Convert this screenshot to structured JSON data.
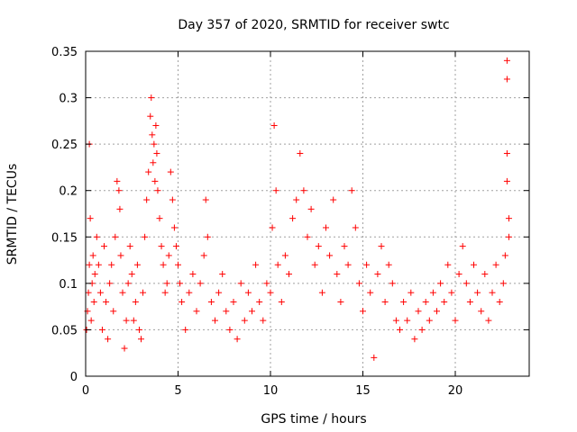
{
  "chart_data": {
    "type": "scatter",
    "title": "Day 357 of 2020, SRMTID for receiver swtc",
    "xlabel": "GPS time / hours",
    "ylabel": "SRMTID / TECUs",
    "xlim": [
      0,
      24
    ],
    "ylim": [
      0,
      0.35
    ],
    "grid": true,
    "marker": "+",
    "x_ticks": [
      0,
      5,
      10,
      15,
      20
    ],
    "x_tick_labels": [
      "0",
      "5",
      "10",
      "15",
      "20"
    ],
    "y_ticks": [
      0,
      0.05,
      0.1,
      0.15,
      0.2,
      0.25,
      0.3,
      0.35
    ],
    "y_tick_labels": [
      "0",
      "0.05",
      "0.1",
      "0.15",
      "0.2",
      "0.25",
      "0.3",
      "0.35"
    ],
    "series": [
      {
        "name": "SRMTID",
        "color": "#ff0000",
        "points": [
          [
            0.05,
            0.05
          ],
          [
            0.1,
            0.07
          ],
          [
            0.15,
            0.09
          ],
          [
            0.2,
            0.12
          ],
          [
            0.2,
            0.25
          ],
          [
            0.25,
            0.17
          ],
          [
            0.3,
            0.06
          ],
          [
            0.35,
            0.1
          ],
          [
            0.4,
            0.13
          ],
          [
            0.45,
            0.08
          ],
          [
            0.5,
            0.11
          ],
          [
            0.6,
            0.15
          ],
          [
            0.7,
            0.12
          ],
          [
            0.8,
            0.09
          ],
          [
            0.9,
            0.05
          ],
          [
            1.0,
            0.14
          ],
          [
            1.1,
            0.08
          ],
          [
            1.2,
            0.04
          ],
          [
            1.3,
            0.1
          ],
          [
            1.4,
            0.12
          ],
          [
            1.5,
            0.07
          ],
          [
            1.6,
            0.15
          ],
          [
            1.7,
            0.21
          ],
          [
            1.8,
            0.2
          ],
          [
            1.85,
            0.18
          ],
          [
            1.9,
            0.13
          ],
          [
            2.0,
            0.09
          ],
          [
            2.1,
            0.03
          ],
          [
            2.2,
            0.06
          ],
          [
            2.3,
            0.1
          ],
          [
            2.4,
            0.14
          ],
          [
            2.5,
            0.11
          ],
          [
            2.6,
            0.06
          ],
          [
            2.7,
            0.08
          ],
          [
            2.8,
            0.12
          ],
          [
            2.9,
            0.05
          ],
          [
            3.0,
            0.04
          ],
          [
            3.1,
            0.09
          ],
          [
            3.2,
            0.15
          ],
          [
            3.3,
            0.19
          ],
          [
            3.4,
            0.22
          ],
          [
            3.5,
            0.28
          ],
          [
            3.55,
            0.3
          ],
          [
            3.6,
            0.26
          ],
          [
            3.65,
            0.23
          ],
          [
            3.7,
            0.25
          ],
          [
            3.75,
            0.21
          ],
          [
            3.8,
            0.27
          ],
          [
            3.85,
            0.24
          ],
          [
            3.9,
            0.2
          ],
          [
            4.0,
            0.17
          ],
          [
            4.1,
            0.14
          ],
          [
            4.2,
            0.12
          ],
          [
            4.3,
            0.09
          ],
          [
            4.4,
            0.1
          ],
          [
            4.5,
            0.13
          ],
          [
            4.6,
            0.22
          ],
          [
            4.7,
            0.19
          ],
          [
            4.8,
            0.16
          ],
          [
            4.9,
            0.14
          ],
          [
            5.0,
            0.12
          ],
          [
            5.1,
            0.1
          ],
          [
            5.2,
            0.08
          ],
          [
            5.4,
            0.05
          ],
          [
            5.6,
            0.09
          ],
          [
            5.8,
            0.11
          ],
          [
            6.0,
            0.07
          ],
          [
            6.2,
            0.1
          ],
          [
            6.4,
            0.13
          ],
          [
            6.5,
            0.19
          ],
          [
            6.6,
            0.15
          ],
          [
            6.8,
            0.08
          ],
          [
            7.0,
            0.06
          ],
          [
            7.2,
            0.09
          ],
          [
            7.4,
            0.11
          ],
          [
            7.6,
            0.07
          ],
          [
            7.8,
            0.05
          ],
          [
            8.0,
            0.08
          ],
          [
            8.2,
            0.04
          ],
          [
            8.4,
            0.1
          ],
          [
            8.6,
            0.06
          ],
          [
            8.8,
            0.09
          ],
          [
            9.0,
            0.07
          ],
          [
            9.2,
            0.12
          ],
          [
            9.4,
            0.08
          ],
          [
            9.6,
            0.06
          ],
          [
            9.8,
            0.1
          ],
          [
            10.0,
            0.09
          ],
          [
            10.1,
            0.16
          ],
          [
            10.2,
            0.27
          ],
          [
            10.3,
            0.2
          ],
          [
            10.4,
            0.12
          ],
          [
            10.6,
            0.08
          ],
          [
            10.8,
            0.13
          ],
          [
            11.0,
            0.11
          ],
          [
            11.2,
            0.17
          ],
          [
            11.4,
            0.19
          ],
          [
            11.6,
            0.24
          ],
          [
            11.8,
            0.2
          ],
          [
            12.0,
            0.15
          ],
          [
            12.2,
            0.18
          ],
          [
            12.4,
            0.12
          ],
          [
            12.6,
            0.14
          ],
          [
            12.8,
            0.09
          ],
          [
            13.0,
            0.16
          ],
          [
            13.2,
            0.13
          ],
          [
            13.4,
            0.19
          ],
          [
            13.6,
            0.11
          ],
          [
            13.8,
            0.08
          ],
          [
            14.0,
            0.14
          ],
          [
            14.2,
            0.12
          ],
          [
            14.4,
            0.2
          ],
          [
            14.6,
            0.16
          ],
          [
            14.8,
            0.1
          ],
          [
            15.0,
            0.07
          ],
          [
            15.2,
            0.12
          ],
          [
            15.4,
            0.09
          ],
          [
            15.6,
            0.02
          ],
          [
            15.8,
            0.11
          ],
          [
            16.0,
            0.14
          ],
          [
            16.2,
            0.08
          ],
          [
            16.4,
            0.12
          ],
          [
            16.6,
            0.1
          ],
          [
            16.8,
            0.06
          ],
          [
            17.0,
            0.05
          ],
          [
            17.2,
            0.08
          ],
          [
            17.4,
            0.06
          ],
          [
            17.6,
            0.09
          ],
          [
            17.8,
            0.04
          ],
          [
            18.0,
            0.07
          ],
          [
            18.2,
            0.05
          ],
          [
            18.4,
            0.08
          ],
          [
            18.6,
            0.06
          ],
          [
            18.8,
            0.09
          ],
          [
            19.0,
            0.07
          ],
          [
            19.2,
            0.1
          ],
          [
            19.4,
            0.08
          ],
          [
            19.6,
            0.12
          ],
          [
            19.8,
            0.09
          ],
          [
            20.0,
            0.06
          ],
          [
            20.2,
            0.11
          ],
          [
            20.4,
            0.14
          ],
          [
            20.6,
            0.1
          ],
          [
            20.8,
            0.08
          ],
          [
            21.0,
            0.12
          ],
          [
            21.2,
            0.09
          ],
          [
            21.4,
            0.07
          ],
          [
            21.6,
            0.11
          ],
          [
            21.8,
            0.06
          ],
          [
            22.0,
            0.09
          ],
          [
            22.2,
            0.12
          ],
          [
            22.4,
            0.08
          ],
          [
            22.6,
            0.1
          ],
          [
            22.7,
            0.13
          ],
          [
            22.8,
            0.34
          ],
          [
            22.8,
            0.32
          ],
          [
            22.8,
            0.24
          ],
          [
            22.8,
            0.21
          ],
          [
            22.9,
            0.17
          ],
          [
            22.9,
            0.15
          ]
        ]
      }
    ]
  }
}
